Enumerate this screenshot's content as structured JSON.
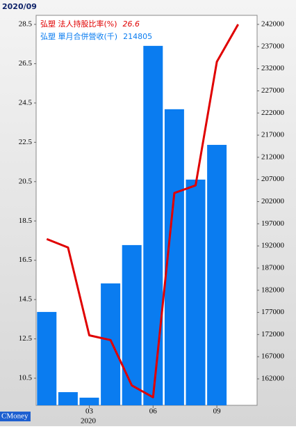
{
  "chart_data": {
    "type": "bar_line",
    "title": "2020/09",
    "brand": "CMoney",
    "year_label": "2020",
    "categories": [
      null,
      null,
      "03",
      null,
      null,
      "06",
      null,
      null,
      "09",
      null
    ],
    "series": [
      {
        "name": "弘塑 單月合併營收(千)",
        "color": "#0a7cf0",
        "type": "bar",
        "axis": "y2",
        "current_value": 214805,
        "values": [
          177100,
          159000,
          157750,
          183540,
          192190,
          237150,
          222850,
          206970,
          214805,
          null
        ]
      },
      {
        "name": "弘塑 法人持股比率(%)",
        "color": "#e00000",
        "type": "line",
        "axis": "y",
        "current_value": 26.6,
        "values": [
          17.58,
          17.15,
          12.68,
          12.44,
          10.13,
          9.53,
          19.92,
          20.31,
          26.6,
          28.5
        ]
      }
    ],
    "ylim": [
      9.12,
      28.96
    ],
    "yticks": [
      10.5,
      12.5,
      14.5,
      16.5,
      18.5,
      20.5,
      22.5,
      24.5,
      26.5,
      28.5
    ],
    "y2lim": [
      156025,
      244044
    ],
    "y2ticks": [
      162000,
      167000,
      172000,
      177000,
      182000,
      187000,
      192000,
      197000,
      202000,
      207000,
      212000,
      217000,
      222000,
      227000,
      232000,
      237000,
      242000
    ]
  }
}
